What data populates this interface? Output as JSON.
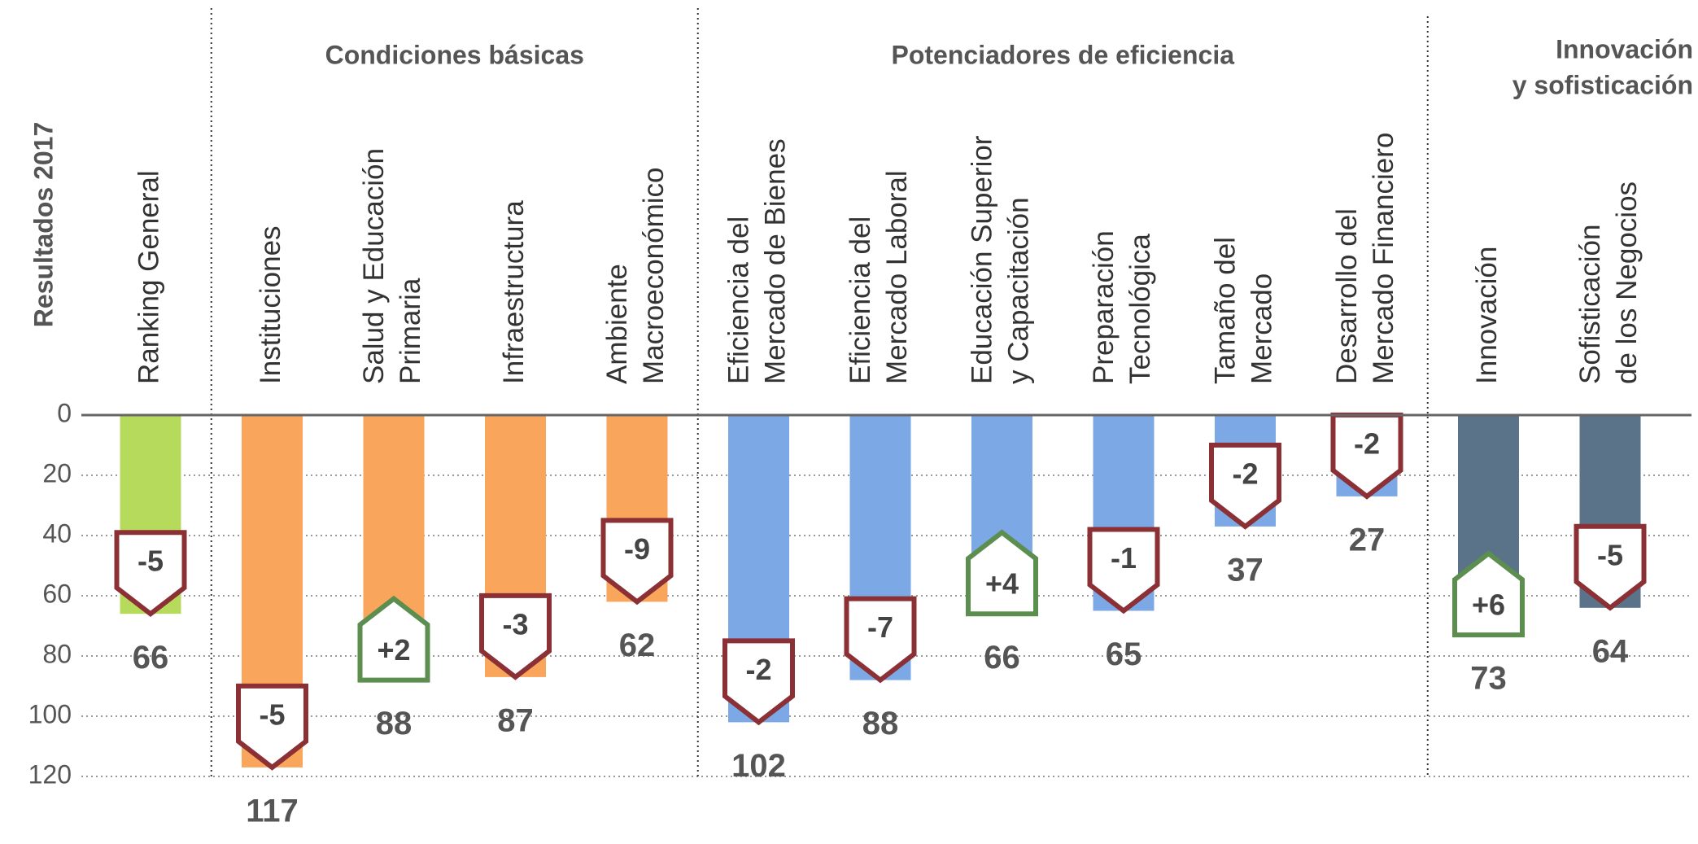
{
  "chart_data": {
    "type": "bar",
    "y_label": "Resultados 2017",
    "ylim": [
      0,
      120
    ],
    "yticks": [
      0,
      20,
      40,
      60,
      80,
      100,
      120
    ],
    "inverted": true,
    "grid": true,
    "groups": [
      {
        "color": "#b6db5c",
        "categories": [
          [
            "Ranking General"
          ]
        ],
        "values": [
          66
        ],
        "changes": [
          -5
        ],
        "change_labels": [
          "-5"
        ]
      },
      {
        "title": [
          "Condiciones básicas"
        ],
        "color": "#f9a55c",
        "categories": [
          [
            "Instituciones"
          ],
          [
            "Salud y Educación",
            "Primaria"
          ],
          [
            "Infraestructura"
          ],
          [
            "Ambiente",
            "Macroeconómico"
          ]
        ],
        "values": [
          117,
          88,
          87,
          62
        ],
        "changes": [
          -5,
          2,
          -3,
          -9
        ],
        "change_labels": [
          "-5",
          "+2",
          "-3",
          "-9"
        ]
      },
      {
        "title": [
          "Potenciadores de eficiencia"
        ],
        "color": "#7ca8e6",
        "categories": [
          [
            "Eficiencia del",
            "Mercado de Bienes"
          ],
          [
            "Eficiencia del",
            "Mercado Laboral"
          ],
          [
            "Educación Superior",
            "y Capacitación"
          ],
          [
            "Preparación",
            "Tecnológica"
          ],
          [
            "Tamaño del",
            "Mercado"
          ],
          [
            "Desarrollo del",
            "Mercado Financiero"
          ]
        ],
        "values": [
          102,
          88,
          66,
          65,
          37,
          27
        ],
        "changes": [
          -2,
          -7,
          4,
          -1,
          -2,
          -2
        ],
        "change_labels": [
          "-2",
          "-7",
          "+4",
          "-1",
          "-2",
          "-2"
        ]
      },
      {
        "title": [
          "Innovación",
          "y sofisticación"
        ],
        "color": "#5a7388",
        "categories": [
          [
            "Innovación"
          ],
          [
            "Sofisticación",
            "de los Negocios"
          ]
        ],
        "values": [
          73,
          64
        ],
        "changes": [
          6,
          -5
        ],
        "change_labels": [
          "+6",
          "-5"
        ]
      }
    ]
  }
}
